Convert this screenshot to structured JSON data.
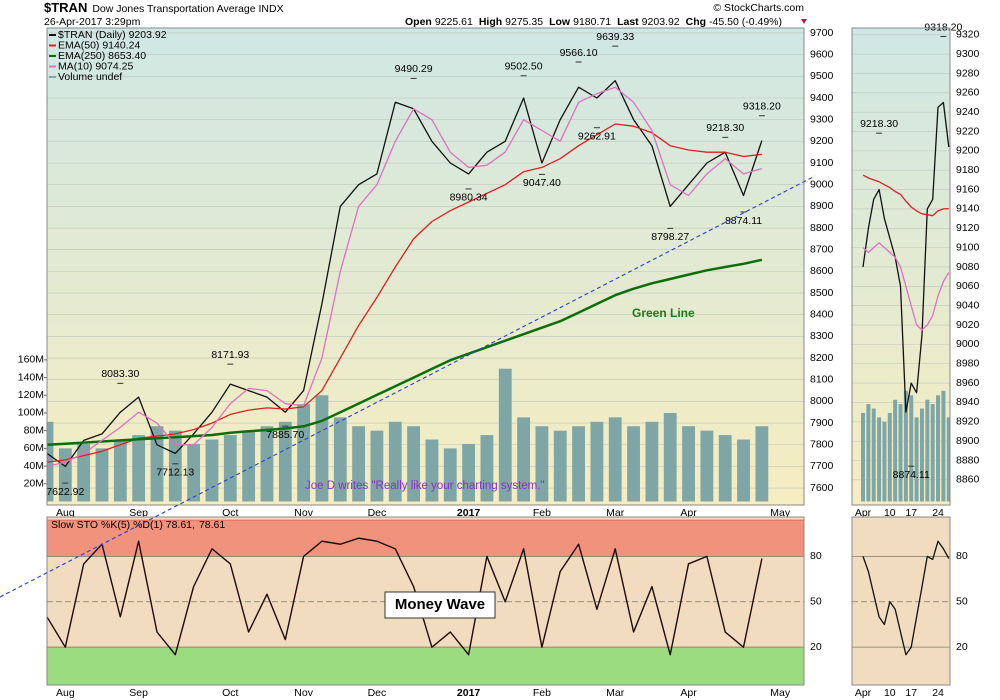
{
  "header": {
    "symbol": "$TRAN",
    "name": "Dow Jones Transportation Average INDX",
    "timestamp": "26-Apr-2017 3:29pm",
    "source": "© StockCharts.com",
    "quote": [
      {
        "label": "Open",
        "value": "9225.61"
      },
      {
        "label": "High",
        "value": "9275.35"
      },
      {
        "label": "Low",
        "value": "9180.71"
      },
      {
        "label": "Last",
        "value": "9203.92"
      },
      {
        "label": "Chg",
        "value": "-45.50 (-0.49%)"
      }
    ]
  },
  "chart_data": [
    {
      "type": "line",
      "background": [
        "#cfe7e4",
        "#f6edc0"
      ],
      "grid": true,
      "categories": [
        null,
        "Aug",
        null,
        null,
        null,
        "Sep",
        null,
        null,
        null,
        null,
        "Oct",
        null,
        null,
        null,
        "Nov",
        null,
        null,
        null,
        "Dec",
        null,
        null,
        null,
        null,
        "2017",
        null,
        null,
        null,
        "Feb",
        null,
        null,
        null,
        "Mar",
        null,
        null,
        null,
        "Apr",
        null,
        null,
        null,
        null,
        "May"
      ],
      "series": [
        {
          "name": "$TRAN (Daily) 9203.92",
          "color": "#111111",
          "values": [
            7760,
            7700,
            7820,
            7850,
            7950,
            8020,
            7800,
            7760,
            7850,
            7950,
            8080,
            8050,
            8020,
            7950,
            8050,
            8450,
            8900,
            9000,
            9050,
            9380,
            9350,
            9200,
            9100,
            9050,
            9150,
            9200,
            9400,
            9100,
            9300,
            9450,
            9400,
            9480,
            9300,
            9180,
            8900,
            9000,
            9100,
            9150,
            8950,
            9203.92,
            null
          ]
        },
        {
          "name": "EMA(50) 9140.24",
          "color": "#e02020",
          "values": [
            7720,
            7730,
            7750,
            7770,
            7800,
            7830,
            7840,
            7850,
            7870,
            7900,
            7940,
            7960,
            7970,
            7965,
            7975,
            8050,
            8200,
            8350,
            8480,
            8620,
            8750,
            8830,
            8880,
            8920,
            8960,
            9000,
            9060,
            9080,
            9120,
            9180,
            9230,
            9280,
            9270,
            9240,
            9180,
            9160,
            9150,
            9150,
            9130,
            9140.24,
            null
          ]
        },
        {
          "name": "EMA(250) 8653.40",
          "color": "#0b6e0b",
          "line_width": 2.5,
          "values": [
            7800,
            7805,
            7810,
            7815,
            7820,
            7825,
            7830,
            7835,
            7840,
            7845,
            7855,
            7862,
            7868,
            7875,
            7885,
            7910,
            7950,
            7990,
            8030,
            8070,
            8110,
            8150,
            8190,
            8220,
            8250,
            8280,
            8310,
            8340,
            8370,
            8410,
            8450,
            8490,
            8520,
            8545,
            8565,
            8585,
            8605,
            8620,
            8635,
            8653.4,
            null
          ]
        },
        {
          "name": "MA(10) 9074.25",
          "color": "#e070c0",
          "values": [
            7700,
            7720,
            7760,
            7820,
            7880,
            7950,
            7900,
            7800,
            7800,
            7880,
            7990,
            8060,
            8050,
            7990,
            7980,
            8200,
            8600,
            8900,
            9000,
            9200,
            9350,
            9300,
            9150,
            9080,
            9090,
            9150,
            9300,
            9250,
            9200,
            9380,
            9420,
            9450,
            9380,
            9250,
            9000,
            8950,
            9050,
            9120,
            9050,
            9074.25,
            null
          ]
        },
        {
          "name": "Volume undef",
          "color": "#7fa6a6",
          "axis": "y2",
          "values": [
            90,
            60,
            65,
            60,
            70,
            75,
            85,
            80,
            65,
            70,
            75,
            80,
            85,
            90,
            110,
            120,
            95,
            85,
            80,
            90,
            85,
            70,
            60,
            65,
            75,
            150,
            95,
            85,
            80,
            85,
            90,
            95,
            85,
            90,
            100,
            85,
            80,
            75,
            70,
            85,
            null
          ]
        }
      ],
      "ylim": [
        7522,
        9723
      ],
      "yticks": [
        7600,
        7700,
        7800,
        7900,
        8000,
        8100,
        8200,
        8300,
        8400,
        8500,
        8600,
        8700,
        8800,
        8900,
        9000,
        9100,
        9200,
        9300,
        9400,
        9500,
        9600,
        9700
      ],
      "y2lim": [
        -4,
        535
      ],
      "y2ticks": [
        {
          "value": 20,
          "label": "20M"
        },
        {
          "value": 40,
          "label": "40M"
        },
        {
          "value": 60,
          "label": "60M"
        },
        {
          "value": 80,
          "label": "80M"
        },
        {
          "value": 100,
          "label": "100M"
        },
        {
          "value": 120,
          "label": "120M"
        },
        {
          "value": 140,
          "label": "140M"
        },
        {
          "value": 160,
          "label": "160M"
        }
      ],
      "annotations": [
        {
          "x": 1,
          "value": 7622.92,
          "label": "7622.92"
        },
        {
          "x": 4,
          "value": 8083.3,
          "label": "8083.30"
        },
        {
          "x": 7,
          "value": 7712.13,
          "label": "7712.13"
        },
        {
          "x": 10,
          "value": 8171.93,
          "label": "8171.93"
        },
        {
          "x": 13,
          "value": 7885.7,
          "label": "7885.70"
        },
        {
          "x": 20,
          "value": 9490.29,
          "label": "9490.29"
        },
        {
          "x": 23,
          "value": 8980.34,
          "label": "8980.34"
        },
        {
          "x": 26,
          "value": 9502.5,
          "label": "9502.50"
        },
        {
          "x": 27,
          "value": 9047.4,
          "label": "9047.40"
        },
        {
          "x": 29,
          "value": 9566.1,
          "label": "9566.10"
        },
        {
          "x": 31,
          "value": 9639.33,
          "label": "9639.33"
        },
        {
          "x": 30,
          "value": 9262.91,
          "label": "9262.91"
        },
        {
          "x": 34,
          "value": 8798.27,
          "label": "8798.27"
        },
        {
          "x": 37,
          "value": 9218.3,
          "label": "9218.30"
        },
        {
          "x": 38,
          "value": 8874.11,
          "label": "8874.11"
        },
        {
          "x": 39,
          "value": 9318.2,
          "label": "9318.20"
        }
      ],
      "notes": [
        "Green Line",
        "Joe D writes \"Really like your charting system.\""
      ]
    },
    {
      "type": "line",
      "background": [
        "#f2dcc0",
        "#f2dcc0"
      ],
      "grid": true,
      "categories": [
        null,
        "Aug",
        null,
        null,
        null,
        "Sep",
        null,
        null,
        null,
        null,
        "Oct",
        null,
        null,
        null,
        "Nov",
        null,
        null,
        null,
        "Dec",
        null,
        null,
        null,
        null,
        "2017",
        null,
        null,
        null,
        "Feb",
        null,
        null,
        null,
        "Mar",
        null,
        null,
        null,
        "Apr",
        null,
        null,
        null,
        null,
        "May"
      ],
      "series": [
        {
          "name": "78.61",
          "color": "#e02020",
          "values": [
            40,
            20,
            75,
            88,
            40,
            90,
            30,
            15,
            60,
            85,
            75,
            30,
            55,
            25,
            80,
            90,
            88,
            92,
            90,
            85,
            60,
            20,
            30,
            15,
            80,
            50,
            85,
            20,
            70,
            88,
            45,
            85,
            30,
            60,
            15,
            75,
            80,
            30,
            20,
            78.61,
            null
          ]
        },
        {
          "name": "Slow STO %K(5) %D(1) 78.61,",
          "color": "#111111",
          "values": [
            40,
            20,
            75,
            88,
            40,
            90,
            30,
            15,
            60,
            85,
            75,
            30,
            55,
            25,
            80,
            90,
            88,
            92,
            90,
            85,
            60,
            20,
            30,
            15,
            80,
            50,
            85,
            20,
            70,
            88,
            45,
            85,
            30,
            60,
            15,
            75,
            80,
            30,
            20,
            78.61,
            null
          ]
        }
      ],
      "ylim": [
        -5,
        106
      ],
      "yticks": [
        20,
        50,
        80
      ],
      "zones": [
        {
          "from": 80,
          "to": 104,
          "color": "#f08a74"
        },
        {
          "from": -5,
          "to": 20,
          "color": "#92dc7a"
        }
      ],
      "notes": [
        "Money Wave"
      ]
    },
    {
      "type": "line",
      "background": [
        "#cfe7e4",
        "#f6edc0"
      ],
      "grid": true,
      "categories": [
        "Apr",
        null,
        null,
        null,
        null,
        "10",
        null,
        null,
        null,
        "17",
        null,
        null,
        null,
        null,
        "24",
        null,
        null
      ],
      "series": [
        {
          "color": "#111111",
          "values": [
            9080,
            9120,
            9150,
            9160,
            9130,
            9110,
            9090,
            9060,
            8930,
            8960,
            8950,
            9010,
            9140,
            9150,
            9245,
            9250,
            9203.92
          ]
        },
        {
          "color": "#e02020",
          "values": [
            9175,
            9172,
            9170,
            9168,
            9165,
            9162,
            9158,
            9155,
            9148,
            9142,
            9138,
            9135,
            9134,
            9133,
            9138,
            9140,
            9140.24
          ]
        },
        {
          "color": "#e070c0",
          "values": [
            9100,
            9095,
            9100,
            9105,
            9100,
            9095,
            9090,
            9080,
            9060,
            9040,
            9020,
            9015,
            9020,
            9030,
            9050,
            9065,
            9074.25
          ]
        },
        {
          "color": "#7fa6a6",
          "axis": "y2",
          "values": [
            100,
            110,
            105,
            95,
            90,
            100,
            115,
            110,
            125,
            120,
            95,
            105,
            115,
            110,
            120,
            125,
            95
          ]
        }
      ],
      "ylim": [
        8834,
        9327
      ],
      "yticks": [
        8860,
        8880,
        8900,
        8920,
        8940,
        8960,
        8980,
        9000,
        9020,
        9040,
        9060,
        9080,
        9100,
        9120,
        9140,
        9160,
        9180,
        9200,
        9220,
        9240,
        9260,
        9280,
        9300,
        9320
      ],
      "y2lim": [
        -4,
        535
      ],
      "annotations": [
        {
          "x": 3,
          "value": 9218.3,
          "label": "9218.30"
        },
        {
          "x": 9,
          "value": 8874.11,
          "label": "8874.11"
        },
        {
          "x": 15,
          "value": 9318.2,
          "label": "9318.20"
        }
      ]
    },
    {
      "type": "line",
      "background": [
        "#f2dcc0",
        "#f2dcc0"
      ],
      "grid": true,
      "categories": [
        "Apr",
        null,
        null,
        null,
        null,
        "10",
        null,
        null,
        null,
        "17",
        null,
        null,
        null,
        null,
        "24",
        null,
        null
      ],
      "series": [
        {
          "color": "#111111",
          "values": [
            80,
            70,
            55,
            40,
            35,
            50,
            45,
            30,
            15,
            20,
            40,
            60,
            80,
            78,
            90,
            85,
            78.61
          ]
        }
      ],
      "ylim": [
        -5,
        106
      ],
      "yticks": [
        20,
        50,
        80
      ]
    }
  ]
}
